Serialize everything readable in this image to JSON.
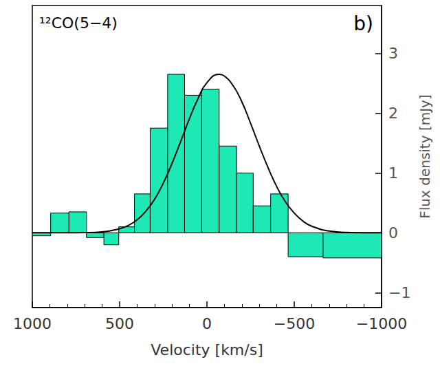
{
  "chart_data": {
    "type": "histogram",
    "title": "¹²CO(5−4)",
    "panel_label": "b)",
    "x_label": "Velocity [km/s]",
    "y_label": "Flux density [mJy]",
    "bins": [
      1000,
      895,
      790,
      690,
      590,
      505,
      415,
      325,
      225,
      128,
      30,
      -70,
      -170,
      -265,
      -365,
      -465,
      -665,
      -1000
    ],
    "counts": [
      -0.05,
      0.33,
      0.35,
      -0.08,
      -0.2,
      0.1,
      0.65,
      1.75,
      2.65,
      2.3,
      2.4,
      1.45,
      1.0,
      0.45,
      0.65,
      -0.4,
      -0.42
    ],
    "color": "#1ee8b4",
    "fit": {
      "type": "line",
      "color": "#000000",
      "x": [
        1000,
        800,
        700,
        600,
        500,
        450,
        400,
        350,
        300,
        250,
        200,
        150,
        100,
        50,
        0,
        -70,
        -100,
        -150,
        -200,
        -250,
        -300,
        -350,
        -400,
        -450,
        -500,
        -550,
        -600,
        -700,
        -800,
        -1000
      ],
      "values": [
        0.0,
        0.0,
        0.003,
        0.016,
        0.067,
        0.124,
        0.216,
        0.36,
        0.56,
        0.83,
        1.16,
        1.53,
        1.91,
        2.25,
        2.51,
        2.65,
        2.62,
        2.46,
        2.19,
        1.83,
        1.45,
        1.09,
        0.77,
        0.515,
        0.33,
        0.195,
        0.11,
        0.029,
        0.006,
        0.0
      ]
    },
    "xlim": [
      1000,
      -1000
    ],
    "xticks": [
      1000,
      500,
      0,
      {
        "value": -500,
        "label": "−500"
      },
      {
        "value": -1000,
        "label": "−1000"
      }
    ],
    "ylim": [
      -1.25,
      3.8
    ],
    "yticks": [
      {
        "value": -1,
        "label": "−1"
      },
      0,
      1,
      2,
      3
    ],
    "grid": false
  }
}
